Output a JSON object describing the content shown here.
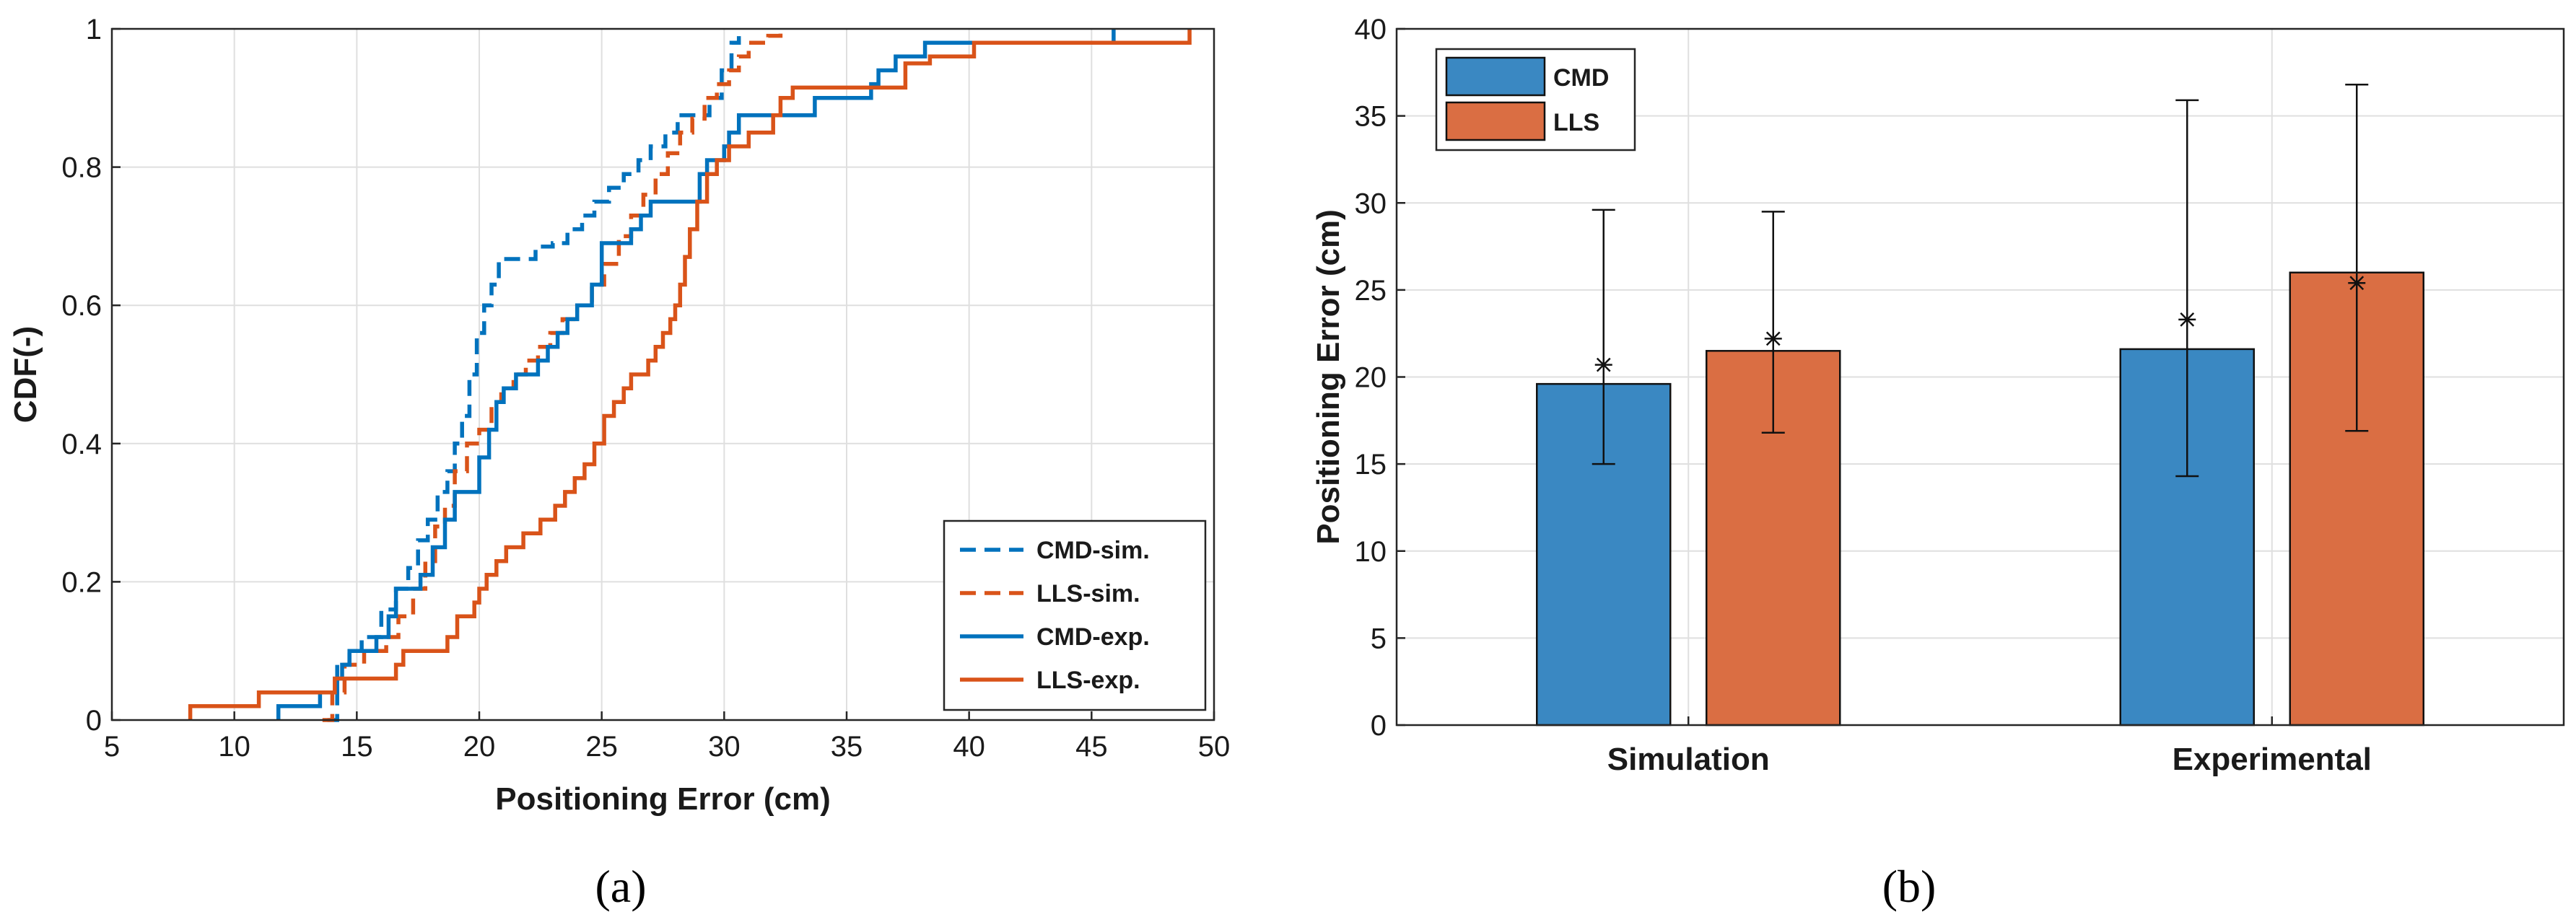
{
  "chart_data": [
    {
      "type": "line",
      "subplot": "(a)",
      "xlabel": "Positioning Error (cm)",
      "ylabel": "CDF(-)",
      "xlim": [
        5,
        50
      ],
      "ylim": [
        0,
        1
      ],
      "xticks": [
        "5",
        "10",
        "15",
        "20",
        "25",
        "30",
        "35",
        "40",
        "45",
        "50"
      ],
      "yticks": [
        "0",
        "0.2",
        "0.4",
        "0.6",
        "0.8",
        "1"
      ],
      "grid": true,
      "legend_position": "bottom-right",
      "series": [
        {
          "name": "CMD-sim.",
          "style": "dashed",
          "color": "#0072BD",
          "steps": [
            [
              13.8,
              0.0
            ],
            [
              14.2,
              0.08
            ],
            [
              14.7,
              0.1
            ],
            [
              15.2,
              0.12
            ],
            [
              16.0,
              0.16
            ],
            [
              16.6,
              0.19
            ],
            [
              17.1,
              0.22
            ],
            [
              17.5,
              0.26
            ],
            [
              17.9,
              0.29
            ],
            [
              18.3,
              0.33
            ],
            [
              18.7,
              0.36
            ],
            [
              19.0,
              0.4
            ],
            [
              19.3,
              0.44
            ],
            [
              19.6,
              0.5
            ],
            [
              19.9,
              0.56
            ],
            [
              20.2,
              0.6
            ],
            [
              20.5,
              0.63
            ],
            [
              20.8,
              0.667
            ],
            [
              21.9,
              0.667
            ],
            [
              22.3,
              0.685
            ],
            [
              23.0,
              0.69
            ],
            [
              23.6,
              0.71
            ],
            [
              24.2,
              0.73
            ],
            [
              24.7,
              0.75
            ],
            [
              25.3,
              0.77
            ],
            [
              25.9,
              0.79
            ],
            [
              26.5,
              0.81
            ],
            [
              27.0,
              0.83
            ],
            [
              27.6,
              0.85
            ],
            [
              28.1,
              0.875
            ],
            [
              28.8,
              0.875
            ],
            [
              29.4,
              0.9
            ],
            [
              29.9,
              0.94
            ],
            [
              30.3,
              0.98
            ],
            [
              30.6,
              1.0
            ]
          ]
        },
        {
          "name": "LLS-sim.",
          "style": "dashed",
          "color": "#D95319",
          "steps": [
            [
              13.6,
              0.0
            ],
            [
              14.0,
              0.04
            ],
            [
              14.5,
              0.08
            ],
            [
              15.3,
              0.1
            ],
            [
              16.2,
              0.12
            ],
            [
              16.7,
              0.15
            ],
            [
              17.3,
              0.19
            ],
            [
              17.8,
              0.23
            ],
            [
              18.2,
              0.28
            ],
            [
              18.6,
              0.31
            ],
            [
              19.0,
              0.36
            ],
            [
              19.5,
              0.4
            ],
            [
              20.0,
              0.42
            ],
            [
              20.5,
              0.46
            ],
            [
              20.9,
              0.48
            ],
            [
              21.4,
              0.5
            ],
            [
              21.9,
              0.52
            ],
            [
              22.4,
              0.54
            ],
            [
              22.9,
              0.56
            ],
            [
              23.4,
              0.58
            ],
            [
              24.0,
              0.6
            ],
            [
              24.6,
              0.63
            ],
            [
              25.1,
              0.66
            ],
            [
              25.7,
              0.7
            ],
            [
              26.2,
              0.73
            ],
            [
              26.7,
              0.76
            ],
            [
              27.2,
              0.79
            ],
            [
              27.7,
              0.82
            ],
            [
              28.2,
              0.85
            ],
            [
              28.7,
              0.87
            ],
            [
              29.2,
              0.9
            ],
            [
              29.7,
              0.92
            ],
            [
              30.2,
              0.94
            ],
            [
              30.6,
              0.96
            ],
            [
              31.0,
              0.98
            ],
            [
              31.8,
              0.99
            ],
            [
              32.3,
              1.0
            ]
          ]
        },
        {
          "name": "CMD-exp.",
          "style": "solid",
          "color": "#0072BD",
          "steps": [
            [
              11.8,
              0.0
            ],
            [
              11.8,
              0.02
            ],
            [
              13.5,
              0.02
            ],
            [
              13.5,
              0.04
            ],
            [
              14.2,
              0.06
            ],
            [
              14.4,
              0.08
            ],
            [
              14.7,
              0.1
            ],
            [
              15.8,
              0.12
            ],
            [
              16.3,
              0.15
            ],
            [
              16.6,
              0.19
            ],
            [
              17.6,
              0.21
            ],
            [
              18.1,
              0.25
            ],
            [
              18.6,
              0.29
            ],
            [
              19.0,
              0.33
            ],
            [
              20.0,
              0.38
            ],
            [
              20.4,
              0.42
            ],
            [
              20.7,
              0.46
            ],
            [
              21.0,
              0.48
            ],
            [
              21.5,
              0.5
            ],
            [
              22.4,
              0.52
            ],
            [
              22.8,
              0.54
            ],
            [
              23.2,
              0.56
            ],
            [
              23.6,
              0.58
            ],
            [
              24.0,
              0.6
            ],
            [
              24.6,
              0.63
            ],
            [
              25.0,
              0.69
            ],
            [
              26.2,
              0.71
            ],
            [
              26.6,
              0.73
            ],
            [
              27.0,
              0.75
            ],
            [
              29.0,
              0.79
            ],
            [
              29.3,
              0.81
            ],
            [
              30.0,
              0.83
            ],
            [
              30.2,
              0.85
            ],
            [
              30.6,
              0.875
            ],
            [
              33.2,
              0.875
            ],
            [
              33.7,
              0.9
            ],
            [
              36.0,
              0.92
            ],
            [
              36.3,
              0.94
            ],
            [
              37.0,
              0.96
            ],
            [
              38.2,
              0.98
            ],
            [
              45.9,
              0.98
            ],
            [
              45.9,
              1.0
            ]
          ]
        },
        {
          "name": "LLS-exp.",
          "style": "solid",
          "color": "#D95319",
          "steps": [
            [
              8.2,
              0.0
            ],
            [
              8.2,
              0.02
            ],
            [
              11.0,
              0.02
            ],
            [
              11.0,
              0.04
            ],
            [
              14.1,
              0.04
            ],
            [
              14.1,
              0.06
            ],
            [
              16.6,
              0.06
            ],
            [
              16.6,
              0.08
            ],
            [
              16.9,
              0.1
            ],
            [
              18.3,
              0.1
            ],
            [
              18.7,
              0.12
            ],
            [
              19.1,
              0.15
            ],
            [
              19.8,
              0.17
            ],
            [
              20.0,
              0.19
            ],
            [
              20.3,
              0.21
            ],
            [
              20.7,
              0.23
            ],
            [
              21.1,
              0.25
            ],
            [
              21.8,
              0.27
            ],
            [
              22.5,
              0.29
            ],
            [
              23.1,
              0.31
            ],
            [
              23.5,
              0.33
            ],
            [
              23.9,
              0.35
            ],
            [
              24.3,
              0.37
            ],
            [
              24.7,
              0.4
            ],
            [
              25.1,
              0.44
            ],
            [
              25.5,
              0.46
            ],
            [
              25.9,
              0.48
            ],
            [
              26.2,
              0.5
            ],
            [
              26.9,
              0.52
            ],
            [
              27.2,
              0.54
            ],
            [
              27.5,
              0.56
            ],
            [
              27.8,
              0.58
            ],
            [
              28.0,
              0.6
            ],
            [
              28.2,
              0.63
            ],
            [
              28.4,
              0.67
            ],
            [
              28.6,
              0.71
            ],
            [
              28.9,
              0.75
            ],
            [
              29.3,
              0.79
            ],
            [
              29.7,
              0.81
            ],
            [
              30.2,
              0.83
            ],
            [
              31.0,
              0.85
            ],
            [
              32.0,
              0.875
            ],
            [
              32.3,
              0.9
            ],
            [
              32.8,
              0.915
            ],
            [
              36.5,
              0.915
            ],
            [
              37.4,
              0.95
            ],
            [
              38.2,
              0.95
            ],
            [
              38.4,
              0.96
            ],
            [
              40.2,
              0.96
            ],
            [
              40.2,
              0.98
            ],
            [
              49.0,
              0.98
            ],
            [
              49.0,
              1.0
            ]
          ]
        }
      ]
    },
    {
      "type": "bar",
      "subplot": "(b)",
      "xlabel": "",
      "ylabel": "Positioning Error (cm)",
      "ylim": [
        0,
        40
      ],
      "yticks": [
        "0",
        "5",
        "10",
        "15",
        "20",
        "25",
        "30",
        "35",
        "40"
      ],
      "categories": [
        "Simulation",
        "Experimental"
      ],
      "grid": true,
      "legend_position": "top-left",
      "series": [
        {
          "name": "CMD",
          "color": "#3A88C2",
          "values": [
            19.6,
            21.6
          ],
          "marker_values": [
            20.7,
            23.3
          ],
          "error_low": [
            15.0,
            14.3
          ],
          "error_high": [
            29.6,
            35.9
          ]
        },
        {
          "name": "LLS",
          "color": "#DA6E43",
          "values": [
            21.5,
            26.0
          ],
          "marker_values": [
            22.2,
            25.4
          ],
          "error_low": [
            16.8,
            16.9
          ],
          "error_high": [
            29.5,
            36.8
          ]
        }
      ]
    }
  ],
  "panel_labels": [
    "(a)",
    "(b)"
  ]
}
